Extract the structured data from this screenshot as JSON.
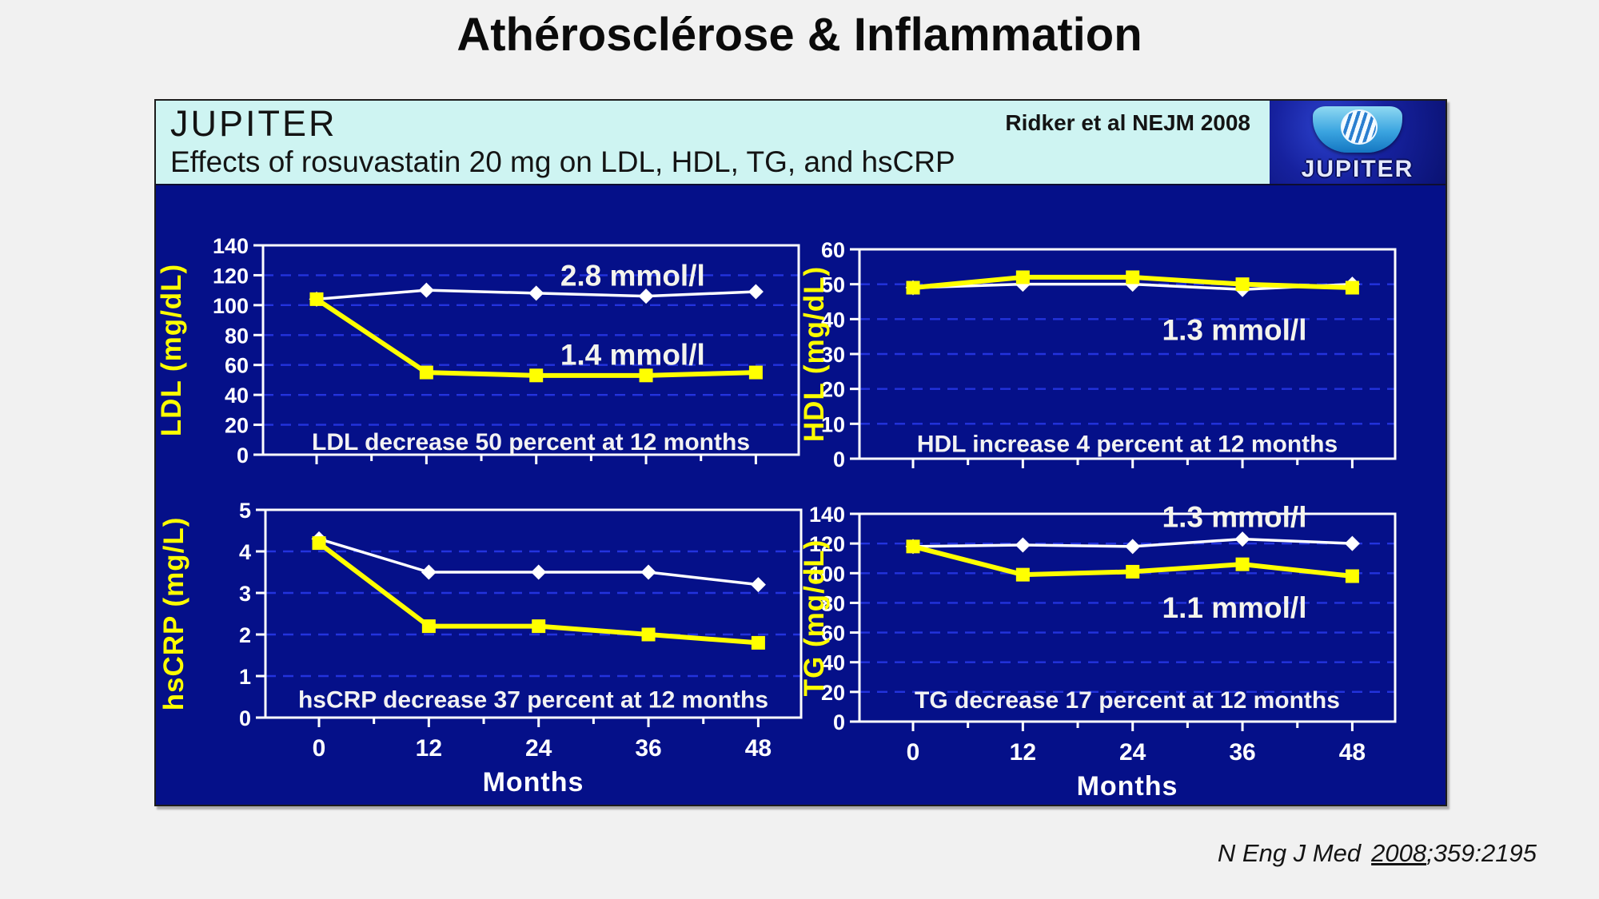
{
  "page": {
    "title": "Athérosclérose & Inflammation",
    "citation": {
      "journal": "N Eng J Med",
      "year": "2008",
      "rest": ";359:2195"
    }
  },
  "slide": {
    "header": {
      "title": "JUPITER",
      "subtitle": "Effects of rosuvastatin 20 mg on LDL, HDL, TG, and hsCRP",
      "attribution": "Ridker et al NEJM 2008",
      "logo_text": "JUPITER"
    },
    "colors": {
      "body_navy": "#051089",
      "header_cyan": "#cef4f2",
      "gridline_blue": "#2333dd",
      "series_white": "#ffffff",
      "series_yellow": "#ffff00"
    }
  },
  "chart_data": [
    {
      "id": "ldl",
      "type": "line",
      "ylabel": "LDL  (mg/dL)",
      "ylim": [
        0,
        140
      ],
      "yticks": [
        0,
        20,
        40,
        60,
        80,
        100,
        120,
        140
      ],
      "x": [
        0,
        12,
        24,
        36,
        48
      ],
      "grid": "dashed-horizontal",
      "series": [
        {
          "color": "#ffffff",
          "marker": "diamond",
          "values": [
            104,
            110,
            108,
            106,
            109
          ]
        },
        {
          "color": "#ffff00",
          "marker": "square",
          "values": [
            104,
            55,
            53,
            53,
            55
          ]
        }
      ],
      "annotations": [
        {
          "text": "2.8 mmol/l",
          "fx": 0.69,
          "y": 120
        },
        {
          "text": "1.4 mmol/l",
          "fx": 0.69,
          "y": 67
        }
      ],
      "caption": {
        "text": "LDL decrease 50 percent at 12 months",
        "fx": 0.5,
        "y": 9
      }
    },
    {
      "id": "hdl",
      "type": "line",
      "ylabel": "HDL (mg/dL)",
      "ylim": [
        0,
        60
      ],
      "yticks": [
        0,
        10,
        20,
        30,
        40,
        50,
        60
      ],
      "x": [
        0,
        12,
        24,
        36,
        48
      ],
      "grid": "dashed-horizontal",
      "series": [
        {
          "color": "#ffffff",
          "marker": "diamond",
          "values": [
            49,
            50,
            50,
            48.5,
            50
          ]
        },
        {
          "color": "#ffff00",
          "marker": "square",
          "values": [
            49,
            52,
            52,
            50,
            49
          ]
        }
      ],
      "annotations": [
        {
          "text": "1.3 mmol/l",
          "fx": 0.7,
          "y": 37
        }
      ],
      "caption": {
        "text": "HDL increase 4 percent at 12 months",
        "fx": 0.5,
        "y": 4.5
      }
    },
    {
      "id": "hscrp",
      "type": "line",
      "ylabel": "hsCRP (mg/L)",
      "ylim": [
        0,
        5
      ],
      "yticks": [
        0,
        1,
        2,
        3,
        4,
        5
      ],
      "x": [
        0,
        12,
        24,
        36,
        48
      ],
      "x_tick_labels": [
        "0",
        "12",
        "24",
        "36",
        "48"
      ],
      "xlabel": "Months",
      "grid": "dashed-horizontal",
      "series": [
        {
          "color": "#ffffff",
          "marker": "diamond",
          "values": [
            4.3,
            3.5,
            3.5,
            3.5,
            3.2
          ]
        },
        {
          "color": "#ffff00",
          "marker": "square",
          "values": [
            4.2,
            2.2,
            2.2,
            2.0,
            1.8
          ]
        }
      ],
      "annotations": [],
      "caption": {
        "text": "hsCRP decrease 37 percent at 12 months",
        "fx": 0.5,
        "y": 0.45
      }
    },
    {
      "id": "tg",
      "type": "line",
      "ylabel": "TG  (mg/dL)",
      "ylim": [
        0,
        140
      ],
      "yticks": [
        0,
        20,
        40,
        60,
        80,
        100,
        120,
        140
      ],
      "x": [
        0,
        12,
        24,
        36,
        48
      ],
      "x_tick_labels": [
        "0",
        "12",
        "24",
        "36",
        "48"
      ],
      "xlabel": "Months",
      "grid": "dashed-horizontal",
      "series": [
        {
          "color": "#ffffff",
          "marker": "diamond",
          "values": [
            118,
            119,
            118,
            123,
            120
          ]
        },
        {
          "color": "#ffff00",
          "marker": "square",
          "values": [
            118,
            99,
            101,
            106,
            98
          ]
        }
      ],
      "annotations": [
        {
          "text": "1.3 mmol/l",
          "fx": 0.7,
          "y": 138
        },
        {
          "text": "1.1 mmol/l",
          "fx": 0.7,
          "y": 77
        }
      ],
      "caption": {
        "text": "TG decrease 17 percent at 12 months",
        "fx": 0.5,
        "y": 15
      }
    }
  ]
}
